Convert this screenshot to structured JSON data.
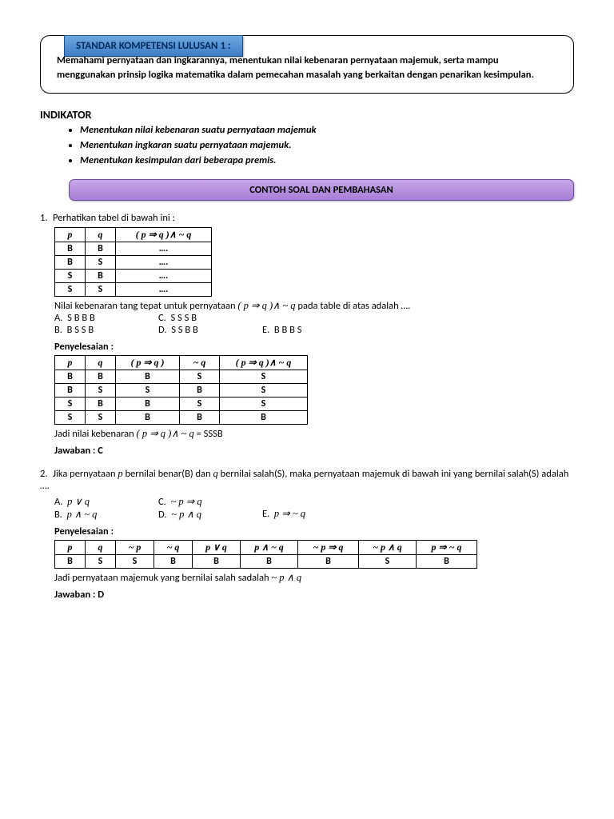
{
  "header": {
    "title": "STANDAR KOMPETENSI LULUSAN 1 :",
    "desc": "Memahami pernyataan dan ingkarannya, menentukan nilai kebenaran pernyataan majemuk, serta mampu menggunakan prinsip logika matematika dalam pemecahan masalah yang berkaitan dengan penarikan kesimpulan."
  },
  "indikator": {
    "title": "INDIKATOR",
    "items": [
      "Menentukan nilai kebenaran suatu pernyataan majemuk",
      "Menentukan ingkaran suatu pernyataan majemuk.",
      "Menentukan kesimpulan dari beberapa premis."
    ]
  },
  "banner": "CONTOH SOAL DAN PEMBAHASAN",
  "q1": {
    "num": "1.",
    "text": "Perhatikan tabel di bawah ini :",
    "t1": {
      "cols": [
        "p",
        "q",
        "( p ⇒ q )∧ ~ q"
      ],
      "widths": [
        38,
        38,
        120
      ],
      "rows": [
        [
          "B",
          "B",
          "…."
        ],
        [
          "B",
          "S",
          "…."
        ],
        [
          "S",
          "B",
          "…."
        ],
        [
          "S",
          "S",
          "…."
        ]
      ]
    },
    "after1a": "Nilai kebenaran tang tepat untuk pernyataan ",
    "after1expr": "( p ⇒ q )∧ ~ q",
    "after1b": "  pada table di atas adalah ….",
    "opts": {
      "A": "S B B B",
      "B": "B S S B",
      "C": "S S S B",
      "D": "S S B B",
      "E": "B B B S"
    },
    "penyTitle": "Penyelesaian :",
    "t2": {
      "cols": [
        "p",
        "q",
        "( p ⇒ q )",
        "~ q",
        "( p ⇒ q )∧ ~ q"
      ],
      "widths": [
        38,
        38,
        80,
        50,
        110
      ],
      "rows": [
        [
          "B",
          "B",
          "B",
          "S",
          "S"
        ],
        [
          "B",
          "S",
          "S",
          "B",
          "S"
        ],
        [
          "S",
          "B",
          "B",
          "S",
          "S"
        ],
        [
          "S",
          "S",
          "B",
          "B",
          "B"
        ]
      ]
    },
    "conclA": "Jadi nilai kebenaran ",
    "conclExpr": "( p ⇒ q )∧ ~ q",
    "conclB": "  = SSSB",
    "jawab": "Jawaban : C"
  },
  "q2": {
    "num": "2.",
    "text1": "Jika pernyataan ",
    "p": "p",
    "text2": " bernilai benar(B) dan  ",
    "q": "q",
    "text3": " bernilai salah(S), maka pernyataan majemuk di bawah ini yang bernilai salah(S) adalah ….",
    "opts": {
      "A": "p ∨ q",
      "B": "p ∧ ~ q",
      "C": "~ p ⇒ q",
      "D": "~ p ∧ q",
      "E": "p ⇒ ~ q"
    },
    "penyTitle": "Penyelesaian :",
    "t": {
      "cols": [
        "p",
        "q",
        "~ p",
        "~ q",
        "p ∨ q",
        "p ∧ ~ q",
        "~ p ⇒ q",
        "~ p ∧ q",
        "p ⇒ ~ q"
      ],
      "widths": [
        38,
        38,
        48,
        48,
        60,
        72,
        76,
        72,
        76
      ],
      "rows": [
        [
          "B",
          "S",
          "S",
          "B",
          "B",
          "B",
          "B",
          "S",
          "B"
        ]
      ]
    },
    "conclA": "Jadi pernyataan majemuk yang bernilai salah sadalah  ",
    "conclExpr": "~ p ∧ q",
    "jawab": "Jawaban : D"
  }
}
